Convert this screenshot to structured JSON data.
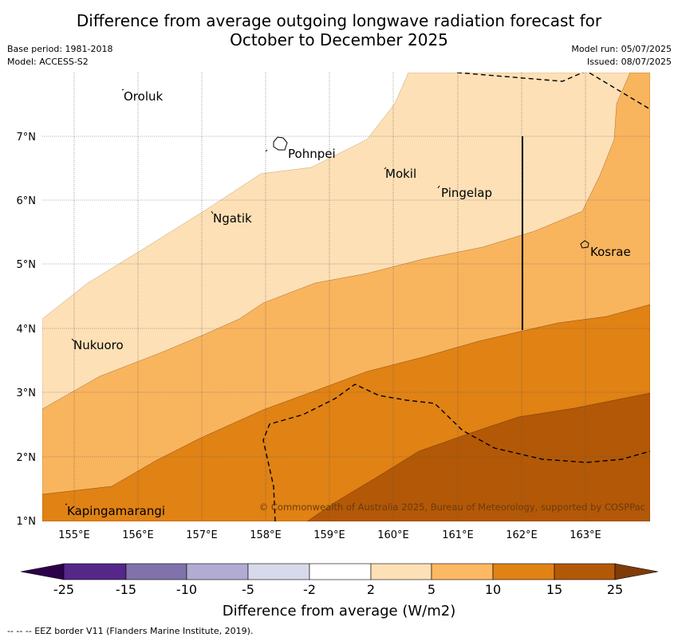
{
  "title_line1": "Difference from average outgoing longwave radiation forecast for",
  "title_line2": "October to December 2025",
  "meta_left": {
    "base_period": "Base period: 1981-2018",
    "model": "Model: ACCESS-S2"
  },
  "meta_right": {
    "model_run": "Model run: 05/07/2025",
    "issued": "Issued: 08/07/2025"
  },
  "map": {
    "lat_ticks": [
      "7°N",
      "6°N",
      "5°N",
      "4°N",
      "3°N",
      "2°N",
      "1°N"
    ],
    "lon_ticks": [
      "155°E",
      "156°E",
      "157°E",
      "158°E",
      "159°E",
      "160°E",
      "161°E",
      "162°E",
      "163°E"
    ],
    "places": [
      "Oroluk",
      "Pohnpei",
      "Mokil",
      "Pingelap",
      "Ngatik",
      "Kosrae",
      "Nukuoro",
      "Kapingamarangi"
    ],
    "copyright": "© Commonwealth of Australia 2025, Bureau of Meteorology, supported by COSPPac",
    "colors": {
      "c2_5": "#fde0b6",
      "c5_10": "#f9b45e",
      "c10_15": "#e08214",
      "c15_25": "#b35806"
    }
  },
  "colorbar": {
    "ticks": [
      "-25",
      "-15",
      "-10",
      "-5",
      "-2",
      "2",
      "5",
      "10",
      "15",
      "25"
    ],
    "colors": [
      "#2d004b",
      "#542788",
      "#8073ac",
      "#b2abd2",
      "#d8daeb",
      "#ffffff",
      "#fee0b6",
      "#fdb863",
      "#e08214",
      "#b35806",
      "#7f3b08"
    ],
    "label": "Difference from average (W/m2)"
  },
  "footer": "-- -- -- EEZ border V11 (Flanders Marine Institute, 2019)."
}
